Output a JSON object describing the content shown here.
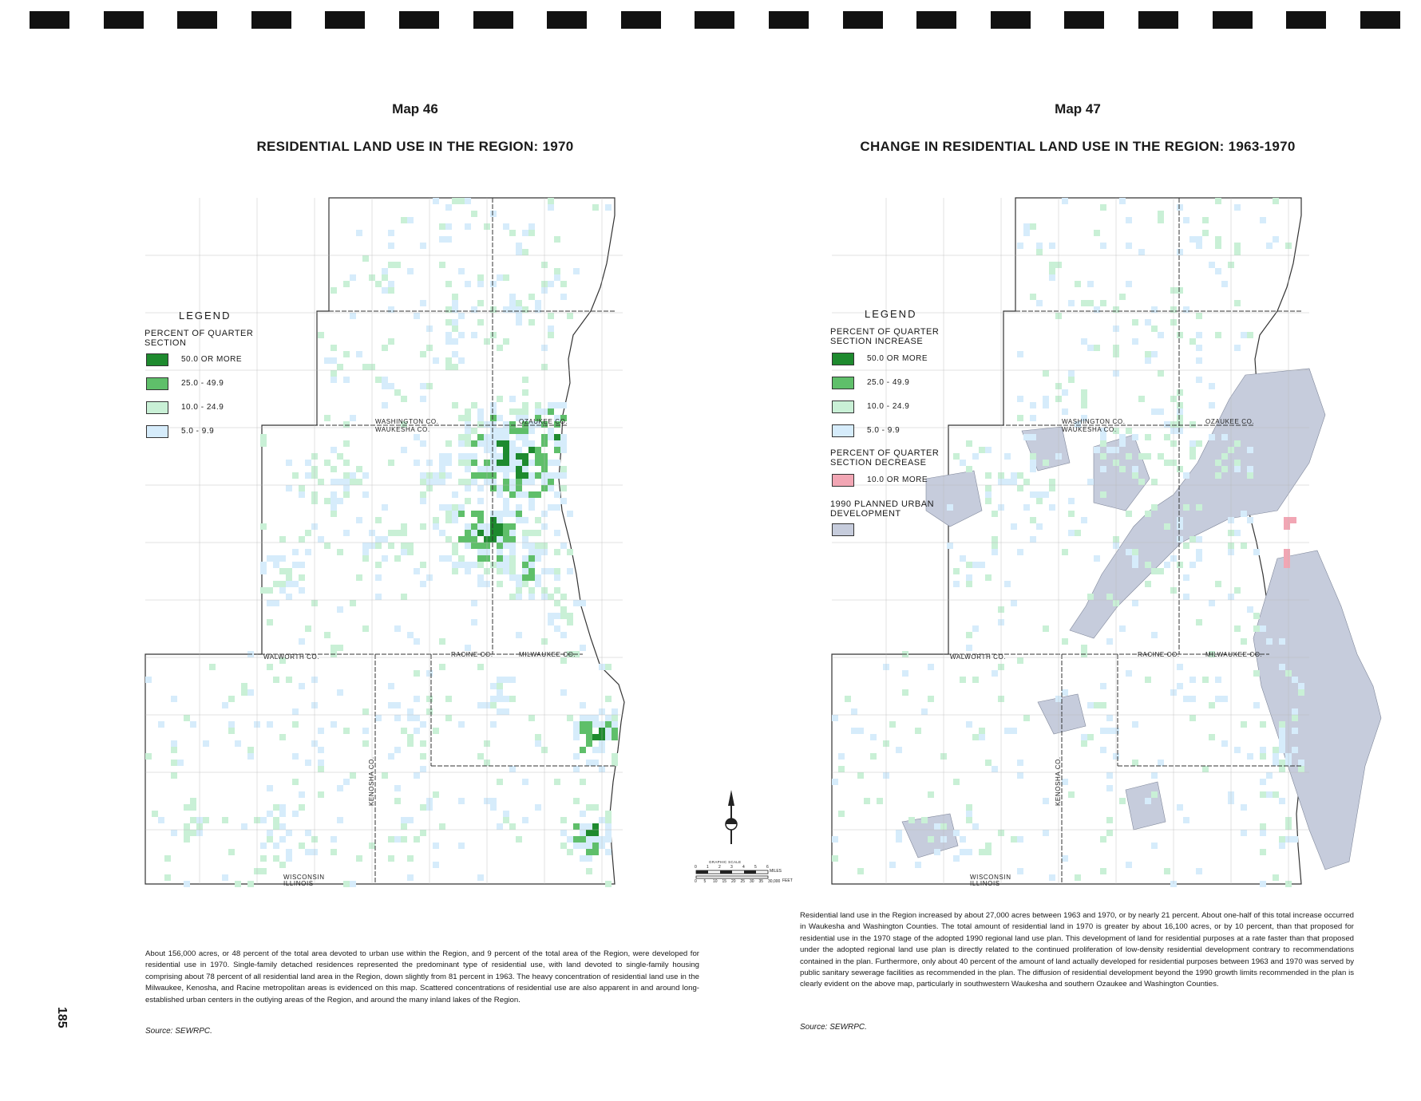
{
  "left_map": {
    "map_number": "Map 46",
    "title": "RESIDENTIAL LAND USE IN THE REGION: 1970",
    "legend": {
      "title": "LEGEND",
      "heading": "PERCENT OF QUARTER SECTION",
      "items": [
        {
          "label": "50.0 OR MORE",
          "color": "#1e8a2e"
        },
        {
          "label": "25.0 - 49.9",
          "color": "#5fbf6a"
        },
        {
          "label": "10.0 - 24.9",
          "color": "#c9f0d6"
        },
        {
          "label": "5.0 - 9.9",
          "color": "#d6ecfb"
        }
      ]
    },
    "county_labels": [
      "WASHINGTON CO.",
      "WAUKESHA CO.",
      "OZAUKEE CO.",
      "MILWAUKEE CO.",
      "WALWORTH CO.",
      "RACINE CO.",
      "KENOSHA CO.",
      "WISCONSIN",
      "ILLINOIS"
    ],
    "caption": "About 156,000 acres, or 48 percent of the total area devoted to urban use within the Region, and 9 percent of the total area of the Region, were developed for residential use in 1970. Single-family detached residences represented the predominant type of residential use, with land devoted to single-family housing comprising about 78 percent of all residential land area in the Region, down slightly from 81 percent in 1963. The heavy concentration of residential land use in the Milwaukee, Kenosha, and Racine metropolitan areas is evidenced on this map. Scattered concentrations of residential use are also apparent in and around long-established urban centers in the outlying areas of the Region, and around the many inland lakes of the Region.",
    "source": "Source: SEWRPC."
  },
  "right_map": {
    "map_number": "Map 47",
    "title": "CHANGE IN RESIDENTIAL LAND USE IN THE REGION: 1963-1970",
    "legend": {
      "title": "LEGEND",
      "heading_increase": "PERCENT OF QUARTER SECTION INCREASE",
      "increase_items": [
        {
          "label": "50.0 OR MORE",
          "color": "#1e8a2e"
        },
        {
          "label": "25.0 - 49.9",
          "color": "#5fbf6a"
        },
        {
          "label": "10.0 - 24.9",
          "color": "#c9f0d6"
        },
        {
          "label": "5.0 - 9.9",
          "color": "#d6ecfb"
        }
      ],
      "heading_decrease": "PERCENT OF QUARTER SECTION DECREASE",
      "decrease_items": [
        {
          "label": "10.0 OR MORE",
          "color": "#f2a6b4"
        }
      ],
      "heading_planned": "1990 PLANNED URBAN DEVELOPMENT",
      "planned_color": "#c6ccdc"
    },
    "county_labels": [
      "WASHINGTON CO.",
      "WAUKESHA CO.",
      "OZAUKEE CO.",
      "MILWAUKEE CO.",
      "WALWORTH CO.",
      "RACINE CO.",
      "KENOSHA CO.",
      "WISCONSIN",
      "ILLINOIS"
    ],
    "caption": "Residential land use in the Region increased by about 27,000 acres between 1963 and 1970, or by nearly 21 percent. About one-half of this total increase occurred in Waukesha and Washington Counties. The total amount of residential land in 1970 is greater by about 16,100 acres, or by 10 percent, than that proposed for residential use in the 1970 stage of the adopted 1990 regional land use plan. This development of land for residential purposes at a rate faster than that proposed under the adopted regional land use plan is directly related to the continued proliferation of low-density residential development contrary to recommendations contained in the plan. Furthermore, only about 40 percent of the amount of land actually developed for residential purposes between 1963 and 1970 was served by public sanitary sewerage facilities as recommended in the plan. The diffusion of residential development beyond the 1990 growth limits recommended in the plan is clearly evident on the above map, particularly in southwestern Waukesha and southern Ozaukee and Washington Counties.",
    "source": "Source: SEWRPC."
  },
  "scale": {
    "label": "GRAPHIC SCALE",
    "miles_label": "MILES",
    "feet_label": "FEET",
    "miles_ticks": [
      "0",
      "1",
      "2",
      "3",
      "4",
      "5",
      "6"
    ],
    "feet_ticks": [
      "0",
      "5",
      "10",
      "15",
      "20",
      "25",
      "30",
      "35",
      "30,000"
    ]
  },
  "page_number": "185"
}
